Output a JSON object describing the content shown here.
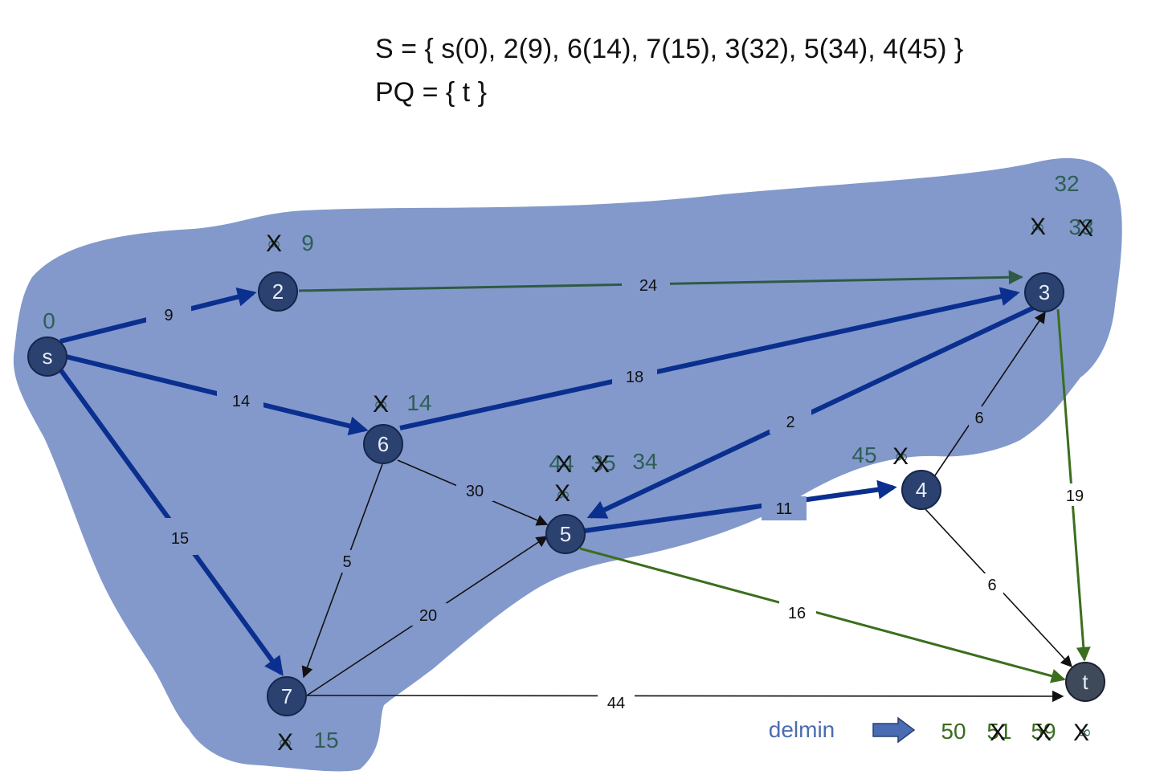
{
  "header": {
    "s_set": "S = { s(0), 2(9), 6(14), 7(15), 3(32), 5(34), 4(45) }",
    "pq": "PQ = { t }"
  },
  "colors": {
    "cloud": "#8399cb",
    "node_fill": "#2b4270",
    "node_t_fill": "#3e4a5a",
    "tree_edge": "#0a2f8f",
    "green_edge": "#2f5a45",
    "bright_green_edge": "#3b6e1e",
    "thin_edge": "#111111"
  },
  "nodes": {
    "s": "s",
    "n2": "2",
    "n3": "3",
    "n4": "4",
    "n5": "5",
    "n6": "6",
    "n7": "7",
    "t": "t"
  },
  "edges": {
    "s_2": "9",
    "s_6": "14",
    "s_7": "15",
    "n2_3": "24",
    "n6_3": "18",
    "n3_5": "2",
    "n4_3": "6",
    "n3_t": "19",
    "n6_5": "30",
    "n6_7": "5",
    "n5_4": "11",
    "n4_t": "6",
    "n5_t": "16",
    "n7_5": "20",
    "n7_t": "44"
  },
  "distances": {
    "s": "0",
    "n2_inf": "∞",
    "n2_val": "9",
    "n6_inf": "∞",
    "n6_val": "14",
    "n7_inf": "∞",
    "n7_val": "15",
    "n3_inf": "∞",
    "n3_old": "33",
    "n3_val": "32",
    "n5_old1": "44",
    "n5_old2": "35",
    "n5_val": "34",
    "n5_inf": "∞",
    "n4_val": "45",
    "n4_inf": "∞",
    "t_val": "50",
    "t_old1": "51",
    "t_old2": "59",
    "t_inf": "∞",
    "cross": "X"
  },
  "legend": {
    "delmin": "delmin"
  }
}
